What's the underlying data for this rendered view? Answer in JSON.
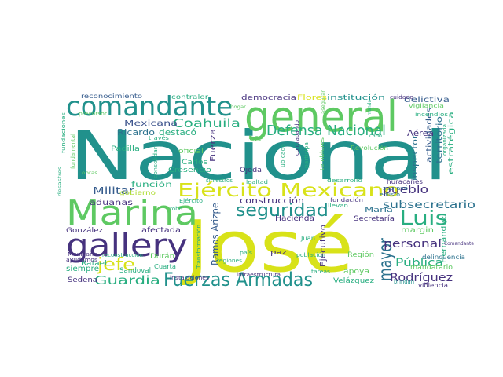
{
  "palette": {
    "dark_purple": "#46327e",
    "indigo": "#3b528b",
    "blue": "#365c8d",
    "steel": "#2c728e",
    "teal": "#21918c",
    "green_teal": "#28ae80",
    "green": "#5ec962",
    "lime": "#addc30",
    "yellow": "#d8e219",
    "background": "#ffffff"
  },
  "words": [
    {
      "text": "Nacional"
    },
    {
      "text": "José"
    },
    {
      "text": "general"
    },
    {
      "text": "comandante"
    },
    {
      "text": "Marina"
    },
    {
      "text": "gallery"
    },
    {
      "text": "Fuerzas Armadas"
    },
    {
      "text": "Ejército Mexicano"
    },
    {
      "text": "seguridad"
    },
    {
      "text": "Defensa Nacional"
    },
    {
      "text": "Luis"
    },
    {
      "text": "mayor"
    },
    {
      "text": "jefe"
    },
    {
      "text": "Coahuila"
    },
    {
      "text": "Guardia"
    },
    {
      "text": "pueblo"
    },
    {
      "text": "Pública"
    },
    {
      "text": "Rodríguez"
    },
    {
      "text": "personal"
    },
    {
      "text": "subsecretario"
    },
    {
      "text": "Militar"
    },
    {
      "text": "Mexicana"
    },
    {
      "text": "Ricardo"
    },
    {
      "text": "destacó"
    },
    {
      "text": "democracia"
    },
    {
      "text": "Flores"
    },
    {
      "text": "institución"
    },
    {
      "text": "delictiva"
    },
    {
      "text": "reconocimiento"
    },
    {
      "text": "contralor"
    },
    {
      "text": "construcción"
    },
    {
      "text": "Hacienda"
    },
    {
      "text": "aduanas"
    },
    {
      "text": "afectada"
    },
    {
      "text": "función"
    },
    {
      "text": "Ramos Arizpe"
    },
    {
      "text": "Ejecutivo"
    },
    {
      "text": "Aérea"
    },
    {
      "text": "territorio"
    },
    {
      "text": "estratégica"
    },
    {
      "text": "actividades"
    },
    {
      "text": "inspector"
    },
    {
      "text": "margin"
    },
    {
      "text": "María"
    },
    {
      "text": "Secretaría"
    },
    {
      "text": "mandatario"
    },
    {
      "text": "apoya"
    },
    {
      "text": "Región"
    },
    {
      "text": "paz"
    },
    {
      "text": "Velázquez"
    },
    {
      "text": "Sedena"
    },
    {
      "text": "Sandoval"
    },
    {
      "text": "Rafael"
    },
    {
      "text": "siempre"
    },
    {
      "text": "González"
    },
    {
      "text": "Durán"
    },
    {
      "text": "Cuarta"
    },
    {
      "text": "Padilla"
    },
    {
      "text": "Carlos"
    },
    {
      "text": "Cresencio"
    },
    {
      "text": "Ojeda"
    },
    {
      "text": "Fuerza"
    },
    {
      "text": "oficial"
    },
    {
      "text": "left"
    },
    {
      "text": "gobierno"
    },
    {
      "text": "Juan"
    },
    {
      "text": "Hernández"
    },
    {
      "text": "Revolución"
    },
    {
      "text": "delincuencia"
    },
    {
      "text": "violencia"
    },
    {
      "text": "brindan"
    },
    {
      "text": "huracanes"
    },
    {
      "text": "subrayó"
    },
    {
      "text": "enlistó"
    },
    {
      "text": "fundación"
    },
    {
      "text": "llevan"
    },
    {
      "text": "población"
    },
    {
      "text": "tareas"
    },
    {
      "text": "instalaciones"
    },
    {
      "text": "infraestructura"
    },
    {
      "text": "regiones"
    },
    {
      "text": "Transformación"
    },
    {
      "text": "país"
    },
    {
      "text": "ubicada"
    },
    {
      "text": "contrabando"
    },
    {
      "text": "participa"
    },
    {
      "text": "temblores"
    },
    {
      "text": "desarrollo"
    },
    {
      "text": "cabo"
    },
    {
      "text": "cuidado"
    },
    {
      "text": "incendios"
    },
    {
      "text": "vigilancia"
    },
    {
      "text": "organizada"
    },
    {
      "text": "lealtad"
    },
    {
      "text": "siniestros"
    },
    {
      "text": "Ejército"
    },
    {
      "text": "robo"
    },
    {
      "text": "Mexicano"
    },
    {
      "text": "reconstrucción"
    },
    {
      "text": "ayudamos"
    },
    {
      "text": "fundamental"
    },
    {
      "text": "través"
    },
    {
      "text": "precursor"
    },
    {
      "text": "fundaciones"
    },
    {
      "text": "desastres"
    },
    {
      "text": "obras"
    },
    {
      "text": "consolidar"
    },
    {
      "text": "asegurar"
    },
    {
      "text": "Comandante"
    },
    {
      "text": "mando"
    },
    {
      "text": "hogar"
    }
  ]
}
